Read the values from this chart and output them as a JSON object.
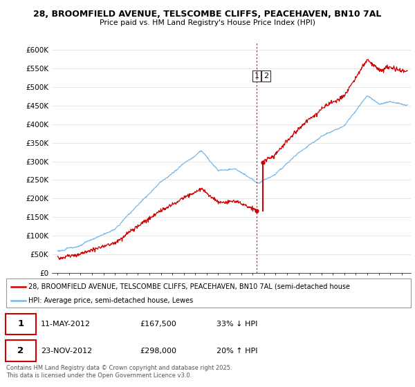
{
  "title_line1": "28, BROOMFIELD AVENUE, TELSCOMBE CLIFFS, PEACEHAVEN, BN10 7AL",
  "title_line2": "Price paid vs. HM Land Registry's House Price Index (HPI)",
  "ylabel_ticks": [
    "£0",
    "£50K",
    "£100K",
    "£150K",
    "£200K",
    "£250K",
    "£300K",
    "£350K",
    "£400K",
    "£450K",
    "£500K",
    "£550K",
    "£600K"
  ],
  "ytick_values": [
    0,
    50000,
    100000,
    150000,
    200000,
    250000,
    300000,
    350000,
    400000,
    450000,
    500000,
    550000,
    600000
  ],
  "ylim": [
    0,
    620000
  ],
  "xlim_start": 1994.5,
  "xlim_end": 2025.8,
  "hpi_color": "#7ab8e8",
  "price_color": "#cc0000",
  "transaction1_date": 2012.36,
  "transaction1_price": 167500,
  "transaction2_date": 2012.9,
  "transaction2_price": 298000,
  "legend_label1": "28, BROOMFIELD AVENUE, TELSCOMBE CLIFFS, PEACEHAVEN, BN10 7AL (semi-detached house",
  "legend_label2": "HPI: Average price, semi-detached house, Lewes",
  "table_row1": [
    "1",
    "11-MAY-2012",
    "£167,500",
    "33% ↓ HPI"
  ],
  "table_row2": [
    "2",
    "23-NOV-2012",
    "£298,000",
    "20% ↑ HPI"
  ],
  "footer_text": "Contains HM Land Registry data © Crown copyright and database right 2025.\nThis data is licensed under the Open Government Licence v3.0.",
  "grid_color": "#dddddd",
  "fig_width": 6.0,
  "fig_height": 5.6
}
